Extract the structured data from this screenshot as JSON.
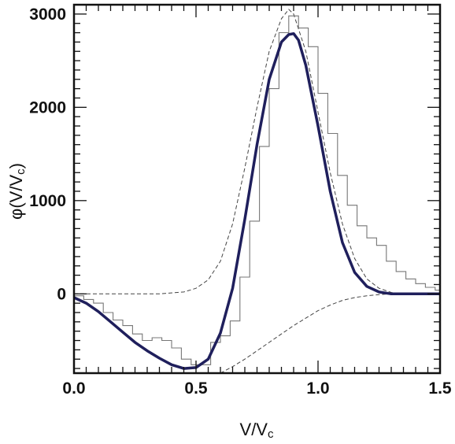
{
  "chart_data": {
    "type": "line",
    "title": "",
    "xlabel": "V/Vc",
    "ylabel": "φ(V/Vc)",
    "xlim": [
      0.0,
      1.5
    ],
    "ylim": [
      -850,
      3100
    ],
    "x_ticks": [
      {
        "value": 0.0,
        "label": "0.0"
      },
      {
        "value": 0.5,
        "label": "0.5"
      },
      {
        "value": 1.0,
        "label": "1.0"
      },
      {
        "value": 1.5,
        "label": "1.5"
      }
    ],
    "y_ticks": [
      {
        "value": 0,
        "label": "0"
      },
      {
        "value": 1000,
        "label": "1000"
      },
      {
        "value": 2000,
        "label": "2000"
      },
      {
        "value": 3000,
        "label": "3000"
      }
    ],
    "grid": false,
    "colors": {
      "model": "#1f1f5c",
      "histogram": "#777777",
      "envelope": "#444444",
      "axis": "#111111"
    },
    "series": [
      {
        "style": "solid-thick",
        "x": [
          0.0,
          0.05,
          0.1,
          0.15,
          0.2,
          0.25,
          0.3,
          0.35,
          0.4,
          0.45,
          0.5,
          0.55,
          0.6,
          0.65,
          0.7,
          0.75,
          0.8,
          0.85,
          0.88,
          0.9,
          0.92,
          0.95,
          1.0,
          1.05,
          1.1,
          1.15,
          1.2,
          1.25,
          1.3,
          1.35,
          1.4,
          1.45,
          1.5
        ],
        "y": [
          -40,
          -100,
          -190,
          -300,
          -410,
          -520,
          -610,
          -690,
          -760,
          -800,
          -790,
          -700,
          -420,
          60,
          800,
          1600,
          2300,
          2700,
          2780,
          2790,
          2720,
          2450,
          1800,
          1100,
          550,
          230,
          80,
          20,
          0,
          0,
          0,
          0,
          0
        ]
      },
      {
        "style": "step",
        "x": [
          0.0,
          0.04,
          0.08,
          0.12,
          0.16,
          0.2,
          0.24,
          0.28,
          0.32,
          0.36,
          0.4,
          0.44,
          0.48,
          0.52,
          0.56,
          0.6,
          0.64,
          0.68,
          0.72,
          0.76,
          0.8,
          0.84,
          0.88,
          0.92,
          0.96,
          1.0,
          1.04,
          1.08,
          1.12,
          1.16,
          1.2,
          1.24,
          1.28,
          1.32,
          1.36,
          1.4,
          1.44,
          1.48,
          1.5
        ],
        "y": [
          -20,
          -60,
          -100,
          -200,
          -280,
          -340,
          -430,
          -500,
          -470,
          -500,
          -580,
          -700,
          -760,
          -760,
          -520,
          -450,
          -290,
          180,
          780,
          1580,
          2200,
          2800,
          2980,
          2850,
          2650,
          2150,
          1720,
          1270,
          950,
          730,
          600,
          520,
          350,
          240,
          160,
          110,
          70,
          40,
          0
        ]
      },
      {
        "style": "dashed",
        "x": [
          0.0,
          0.2,
          0.35,
          0.45,
          0.5,
          0.55,
          0.6,
          0.65,
          0.7,
          0.75,
          0.8,
          0.85,
          0.88,
          0.9,
          0.95,
          1.0,
          1.05,
          1.1,
          1.15,
          1.2,
          1.25,
          1.3,
          1.35,
          1.4,
          1.5
        ],
        "y": [
          0,
          0,
          0,
          20,
          60,
          150,
          350,
          750,
          1350,
          2000,
          2600,
          2950,
          3050,
          3000,
          2600,
          1950,
          1300,
          750,
          380,
          160,
          60,
          15,
          0,
          0,
          0
        ]
      },
      {
        "style": "dashed",
        "x": [
          0.6,
          0.65,
          0.7,
          0.75,
          0.8,
          0.85,
          0.9,
          0.95,
          1.0,
          1.05,
          1.1,
          1.15,
          1.2,
          1.25,
          1.3,
          1.35,
          1.4,
          1.5
        ],
        "y": [
          -850,
          -780,
          -700,
          -610,
          -520,
          -430,
          -340,
          -260,
          -180,
          -120,
          -70,
          -40,
          -20,
          -8,
          0,
          0,
          0,
          0
        ]
      }
    ]
  }
}
